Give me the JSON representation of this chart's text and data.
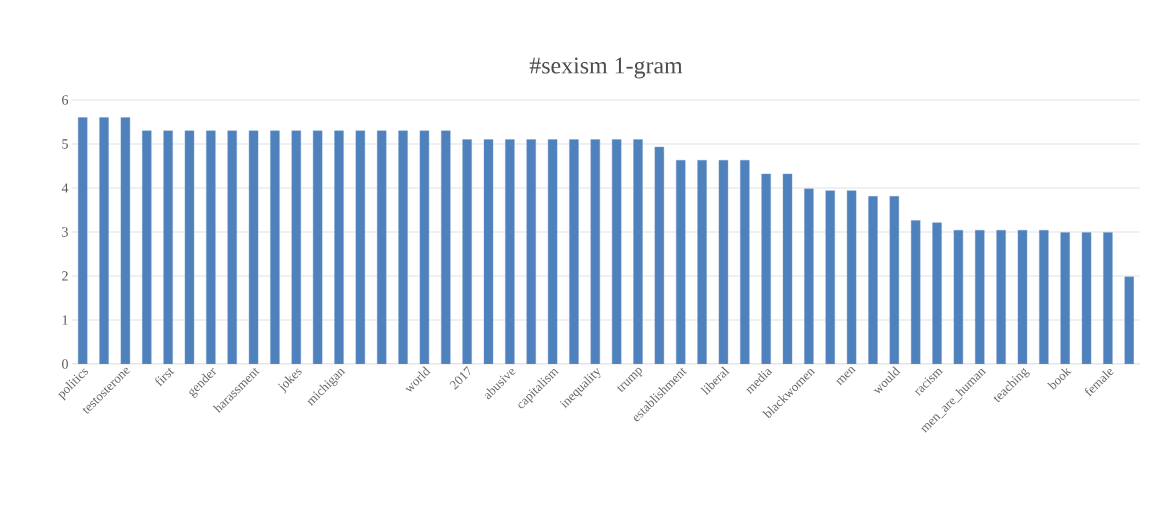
{
  "chart_data": {
    "type": "bar",
    "title": "#sexism 1-gram",
    "categories": [
      "politics",
      null,
      "testosterone",
      null,
      "first",
      null,
      "gender",
      null,
      "harassment",
      null,
      "jokes",
      null,
      "michigan",
      null,
      null,
      null,
      "world",
      null,
      "2017",
      null,
      "abusive",
      null,
      "capitalism",
      null,
      "inequality",
      null,
      "trump",
      null,
      "establishment",
      null,
      "liberal",
      null,
      "media",
      null,
      "blackwomen",
      null,
      "men",
      null,
      "would",
      null,
      "racism",
      null,
      "men_are_human",
      null,
      "teaching",
      null,
      "book",
      null,
      "female",
      null
    ],
    "values": [
      5.6,
      5.6,
      5.6,
      5.3,
      5.3,
      5.3,
      5.3,
      5.3,
      5.3,
      5.3,
      5.3,
      5.3,
      5.3,
      5.3,
      5.3,
      5.3,
      5.3,
      5.3,
      5.1,
      5.1,
      5.1,
      5.1,
      5.1,
      5.1,
      5.1,
      5.1,
      5.1,
      4.93,
      4.63,
      4.63,
      4.63,
      4.63,
      4.32,
      4.32,
      3.98,
      3.94,
      3.94,
      3.81,
      3.81,
      3.26,
      3.21,
      3.04,
      3.04,
      3.04,
      3.04,
      3.04,
      2.99,
      2.99,
      2.99,
      1.98
    ],
    "color": "#4f81bd",
    "ylim": [
      0,
      6
    ],
    "yticks": [
      0,
      1,
      2,
      3,
      4,
      5,
      6
    ],
    "grid": "y"
  }
}
